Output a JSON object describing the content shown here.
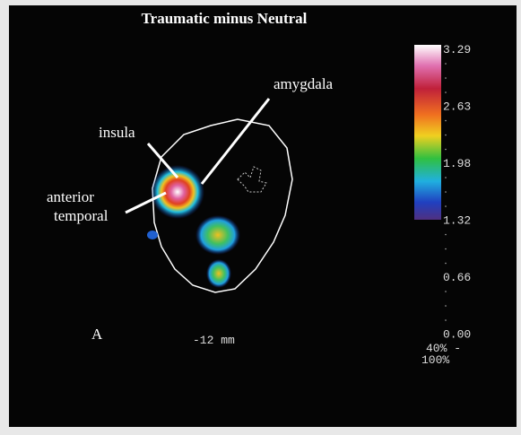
{
  "title": "Traumatic minus Neutral",
  "labels": {
    "insula": "insula",
    "amygdala": "amygdala",
    "anterior_temporal": [
      "anterior",
      "temporal"
    ]
  },
  "panel": "A",
  "slice": "-12 mm",
  "colorbar": {
    "labels": [
      "3.29",
      "2.63",
      "1.98",
      "1.32",
      "0.66",
      "0.00"
    ],
    "threshold": "40% -",
    "max": "100%"
  }
}
